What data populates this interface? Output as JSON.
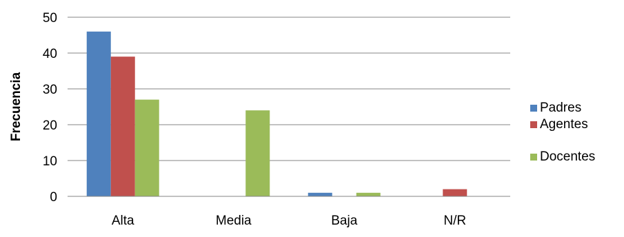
{
  "chart_data": {
    "type": "bar",
    "title": "",
    "xlabel": "",
    "ylabel": "Frecuencia",
    "ylim": [
      0,
      50
    ],
    "yticks": [
      "0",
      "10",
      "20",
      "30",
      "40",
      "50"
    ],
    "categories": [
      "Alta",
      "Media",
      "Baja",
      "N/R"
    ],
    "series": [
      {
        "name": "Padres",
        "color": "#4f81bd",
        "values": [
          46,
          0,
          1,
          0
        ]
      },
      {
        "name": "Agentes",
        "color": "#c0504d",
        "values": [
          39,
          0,
          0,
          2
        ]
      },
      {
        "name": "Docentes",
        "color": "#9bbb59",
        "values": [
          27,
          24,
          1,
          0
        ]
      }
    ],
    "grid": true,
    "legend_position": "right"
  }
}
